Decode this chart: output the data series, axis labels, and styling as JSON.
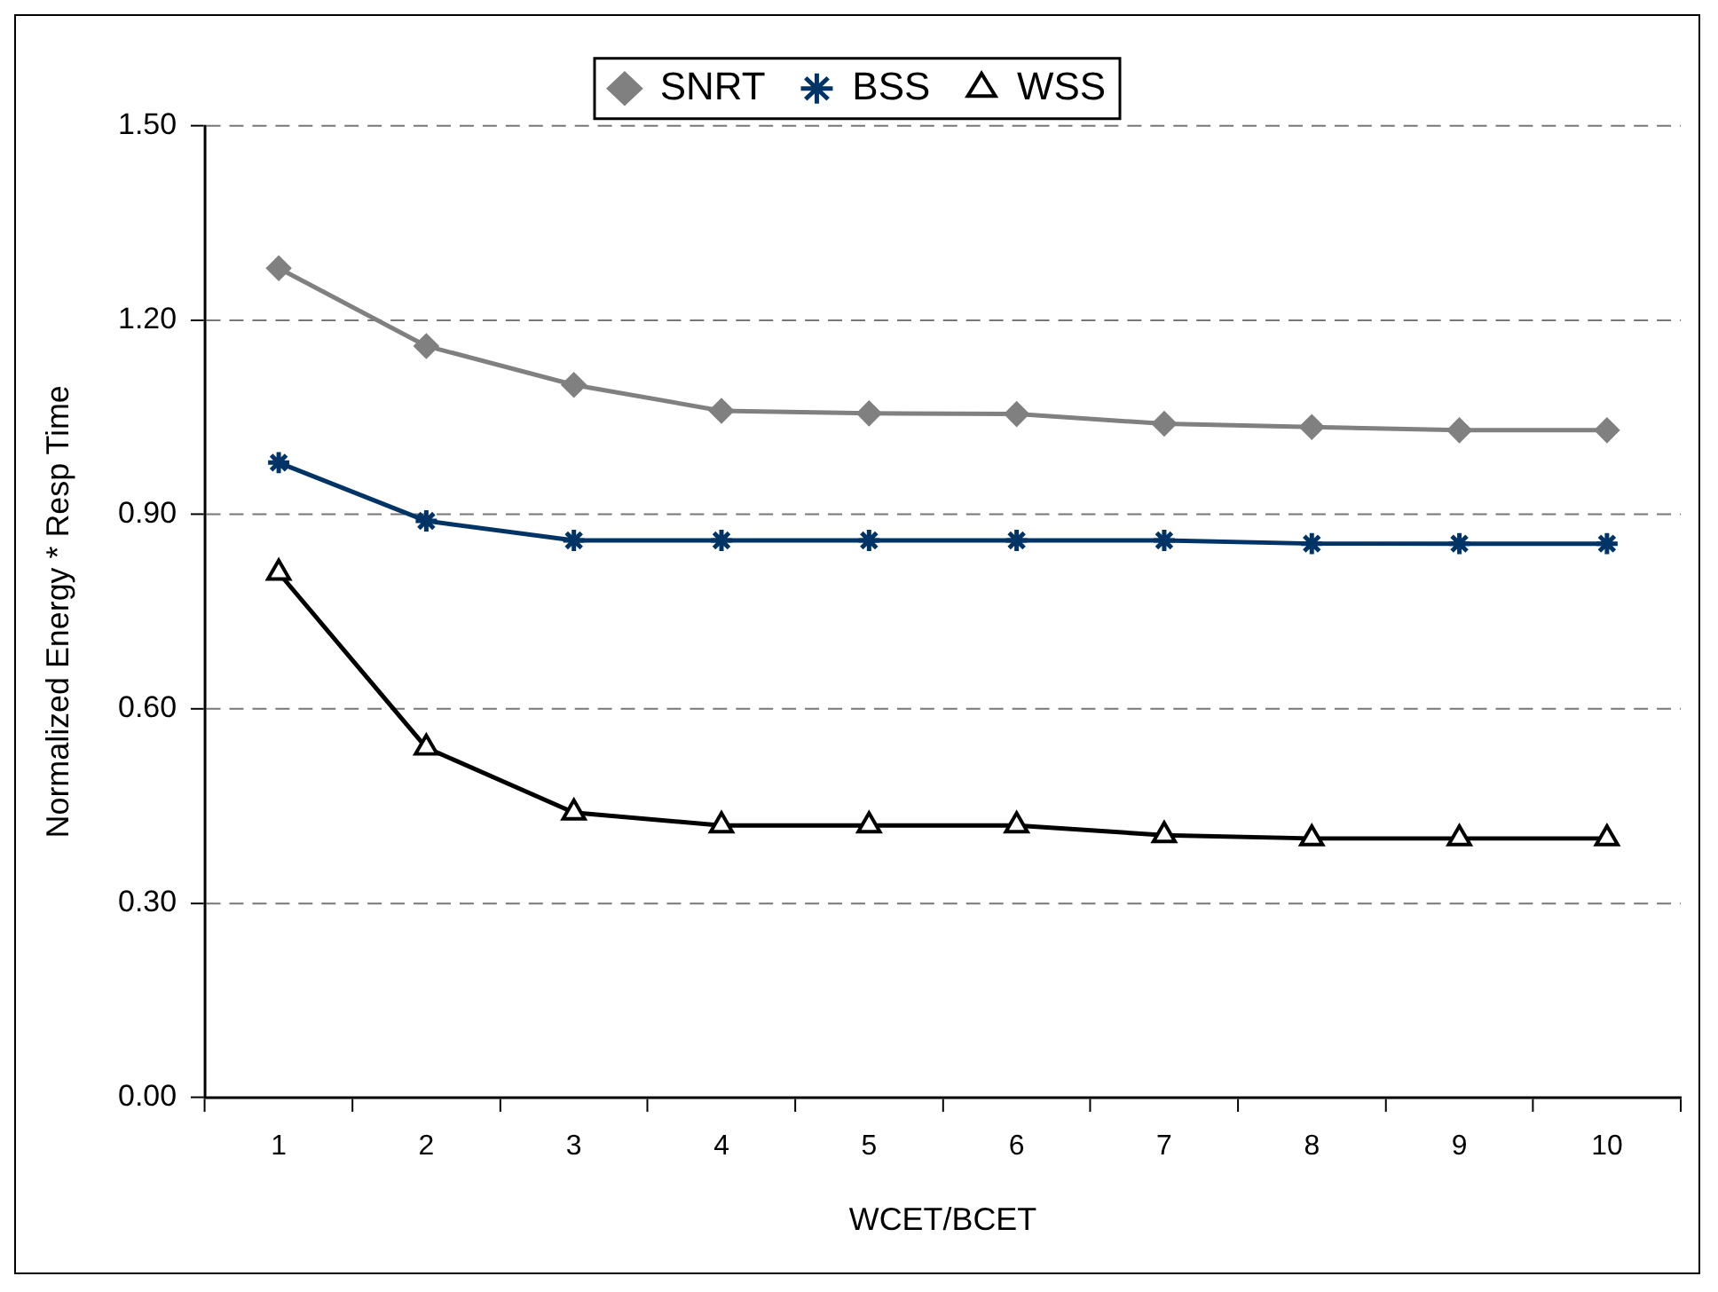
{
  "chart_data": {
    "type": "line",
    "xlabel": "WCET/BCET",
    "ylabel": "Normalized Energy * Resp Time",
    "categories": [
      "1",
      "2",
      "3",
      "4",
      "5",
      "6",
      "7",
      "8",
      "9",
      "10"
    ],
    "series": [
      {
        "name": "SNRT",
        "color": "#808080",
        "marker": "diamond",
        "values": [
          1.28,
          1.16,
          1.1,
          1.06,
          1.056,
          1.055,
          1.04,
          1.035,
          1.03,
          1.03
        ]
      },
      {
        "name": "BSS",
        "color": "#003366",
        "marker": "cross",
        "values": [
          0.98,
          0.89,
          0.86,
          0.86,
          0.86,
          0.86,
          0.86,
          0.855,
          0.855,
          0.855
        ]
      },
      {
        "name": "WSS",
        "color": "#000000",
        "marker": "triangle",
        "values": [
          0.81,
          0.54,
          0.44,
          0.42,
          0.42,
          0.42,
          0.405,
          0.4,
          0.4,
          0.4
        ]
      }
    ],
    "ylim": [
      0,
      1.5
    ],
    "yticks": [
      {
        "value": 0,
        "label": "0.00"
      },
      {
        "value": 0.3,
        "label": "0.30"
      },
      {
        "value": 0.6,
        "label": "0.60"
      },
      {
        "value": 0.9,
        "label": "0.90"
      },
      {
        "value": 1.2,
        "label": "1.20"
      },
      {
        "value": 1.5,
        "label": "1.50"
      }
    ],
    "grid": "y",
    "legend": "top",
    "line_style": "solid"
  }
}
